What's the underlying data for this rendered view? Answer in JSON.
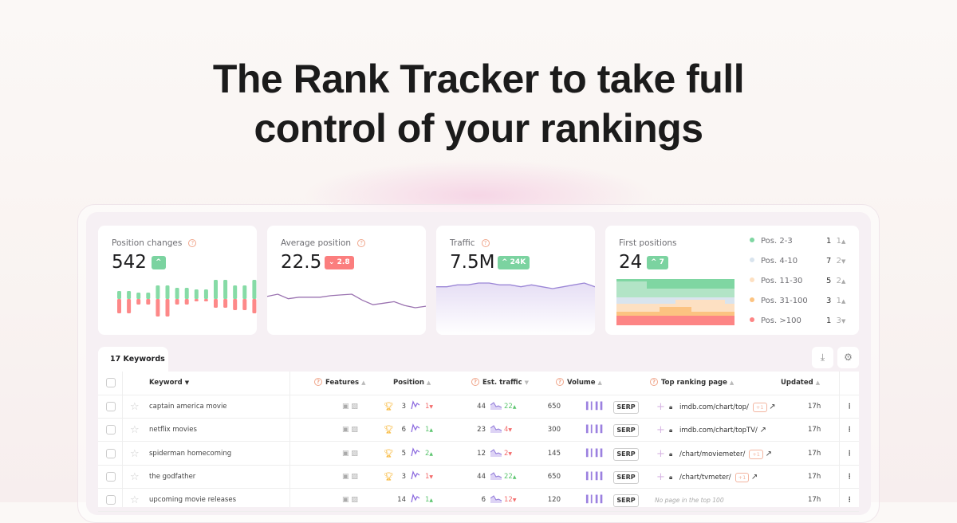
{
  "hero": {
    "line1": "The Rank Tracker to take full",
    "line2": "control of your rankings"
  },
  "cards": {
    "position_changes": {
      "title": "Position changes",
      "value": "542",
      "badge": "^",
      "up": [
        10,
        10,
        8,
        8,
        17,
        17,
        14,
        14,
        12,
        12,
        24,
        24,
        17,
        17,
        24,
        24
      ],
      "down": [
        18,
        18,
        7,
        7,
        22,
        22,
        7,
        7,
        3,
        3,
        11,
        11,
        14,
        14,
        18,
        18
      ]
    },
    "average_position": {
      "title": "Average position",
      "value": "22.5",
      "badge": "⌄ 2.8",
      "series": [
        27,
        24,
        30,
        28,
        28,
        28,
        26,
        25,
        24,
        32,
        38,
        36,
        34,
        39,
        42,
        40
      ]
    },
    "traffic": {
      "title": "Traffic",
      "value": "7.5M",
      "badge": "^ 24K",
      "series": [
        10,
        10,
        11,
        11,
        12,
        12,
        11,
        11,
        10,
        11,
        10,
        9,
        10,
        11,
        12,
        10
      ]
    },
    "first_positions": {
      "title": "First positions",
      "value": "24",
      "badge": "^ 7",
      "legend": [
        {
          "label": "Pos. 2-3",
          "count": "1",
          "change": "1",
          "dir": "up",
          "color": "#7fd6a2"
        },
        {
          "label": "Pos. 4-10",
          "count": "7",
          "change": "2",
          "dir": "down",
          "color": "#d9e4ee"
        },
        {
          "label": "Pos. 11-30",
          "count": "5",
          "change": "2",
          "dir": "up",
          "color": "#fde0c2"
        },
        {
          "label": "Pos. 31-100",
          "count": "3",
          "change": "1",
          "dir": "up",
          "color": "#fcc381"
        },
        {
          "label": "Pos. >100",
          "count": "1",
          "change": "3",
          "dir": "down",
          "color": "#fd8585"
        }
      ]
    }
  },
  "table": {
    "tab_label": "17 Keywords",
    "headers": {
      "keyword": "Keyword",
      "features": "Features",
      "position": "Position",
      "traffic": "Est. traffic",
      "volume": "Volume",
      "page": "Top ranking page",
      "updated": "Updated"
    },
    "serp_label": "SERP",
    "rows": [
      {
        "keyword": "captain america movie",
        "position": "3",
        "pos_change": "1",
        "pos_dir": "down",
        "traffic": "44",
        "tr_change": "22",
        "tr_dir": "up",
        "volume": "650",
        "page": "imdb.com/chart/top/",
        "extra": "+1",
        "updated": "17h",
        "trophy": true
      },
      {
        "keyword": "netflix movies",
        "position": "6",
        "pos_change": "1",
        "pos_dir": "up",
        "traffic": "23",
        "tr_change": "4",
        "tr_dir": "down",
        "volume": "300",
        "page": "imdb.com/chart/topTV/",
        "extra": "",
        "updated": "17h",
        "trophy": true
      },
      {
        "keyword": "spiderman homecoming",
        "position": "5",
        "pos_change": "2",
        "pos_dir": "up",
        "traffic": "12",
        "tr_change": "2",
        "tr_dir": "down",
        "volume": "145",
        "page": "/chart/moviemeter/",
        "extra": "+1",
        "updated": "17h",
        "trophy": true
      },
      {
        "keyword": "the godfather",
        "position": "3",
        "pos_change": "1",
        "pos_dir": "down",
        "traffic": "44",
        "tr_change": "22",
        "tr_dir": "up",
        "volume": "650",
        "page": "/chart/tvmeter/",
        "extra": "+1",
        "updated": "17h",
        "trophy": true
      },
      {
        "keyword": "upcoming movie releases",
        "position": "14",
        "pos_change": "1",
        "pos_dir": "up",
        "traffic": "6",
        "tr_change": "12",
        "tr_dir": "down",
        "volume": "120",
        "page": "No page in the top 100",
        "extra": "",
        "updated": "17h",
        "trophy": false
      }
    ]
  }
}
